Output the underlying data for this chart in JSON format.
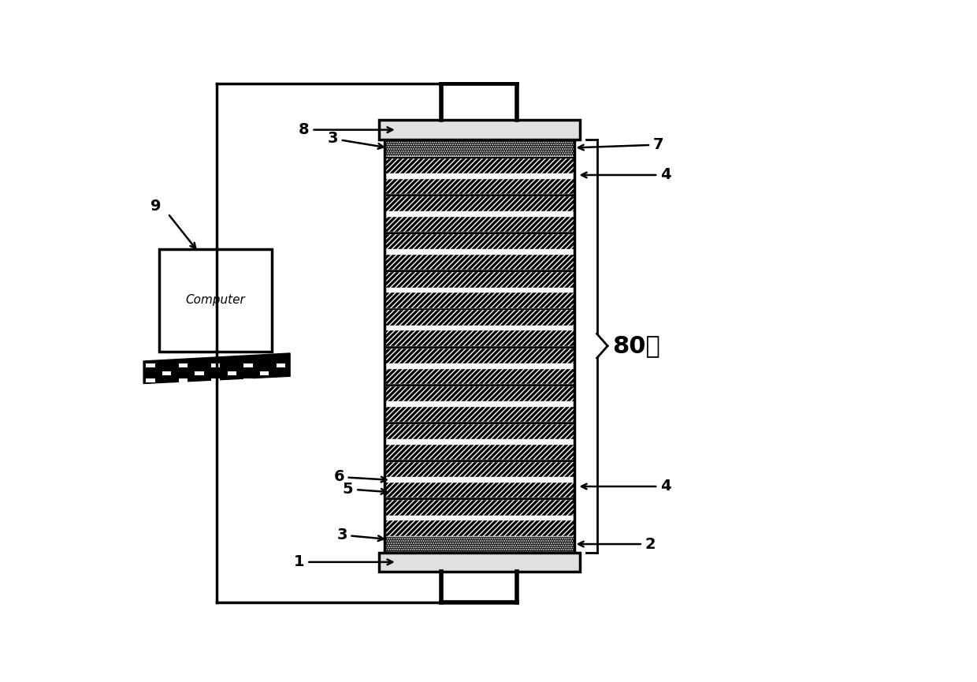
{
  "bg_color": "#ffffff",
  "line_color": "#000000",
  "label_80zu": "80组",
  "label_computer": "Computer"
}
